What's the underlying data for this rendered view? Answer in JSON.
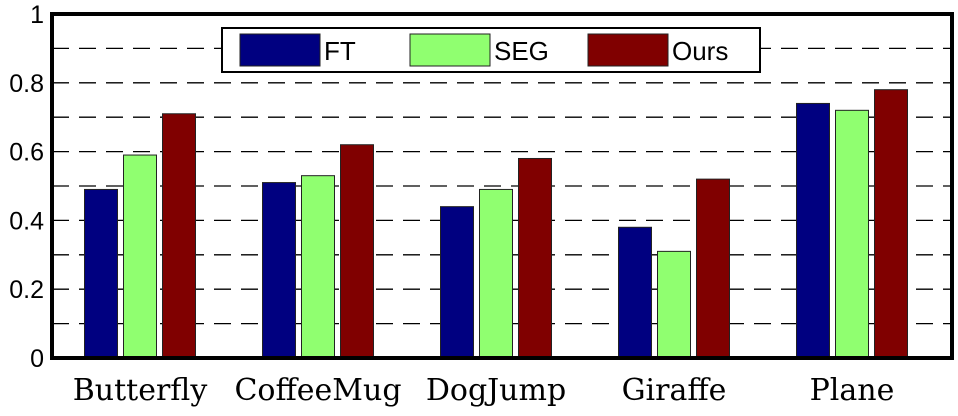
{
  "chart_data": {
    "type": "bar",
    "title": "",
    "xlabel": "",
    "ylabel": "",
    "ylim": [
      0,
      1
    ],
    "yticks": [
      "0",
      "0.2",
      "0.4",
      "0.6",
      "0.8",
      "1"
    ],
    "grid": "dashed horizontal every 0.1",
    "legend_position": "top-center",
    "categories": [
      "Butterfly",
      "CoffeeMug",
      "DogJump",
      "Giraffe",
      "Plane"
    ],
    "series": [
      {
        "name": "FT",
        "color": "#000080",
        "values": [
          0.49,
          0.51,
          0.44,
          0.38,
          0.74
        ]
      },
      {
        "name": "SEG",
        "color": "#90FF70",
        "values": [
          0.59,
          0.53,
          0.49,
          0.31,
          0.72
        ]
      },
      {
        "name": "Ours",
        "color": "#800000",
        "values": [
          0.71,
          0.62,
          0.58,
          0.52,
          0.78
        ]
      }
    ]
  }
}
